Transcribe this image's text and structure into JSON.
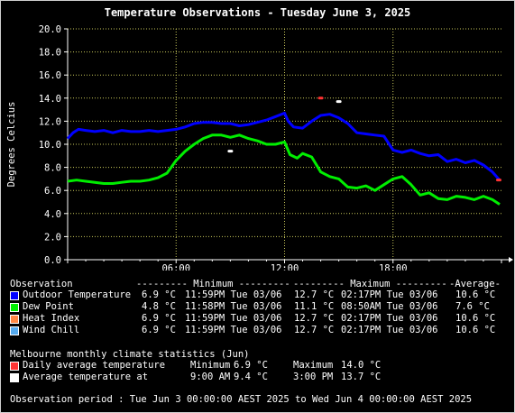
{
  "colors": {
    "outdoor": "#0000ff",
    "dewpoint": "#00ee00",
    "heat_index": "#ff8844",
    "wind_chill": "#55aaee",
    "climate_avg": "#ff3333",
    "climate_temp": "#ffffff",
    "grid": "#c8c85a",
    "axis": "#ffffff"
  },
  "chart_data": {
    "type": "line",
    "title": "Temperature Observations - Tuesday June 3, 2025",
    "ylabel": "Degrees Celcius",
    "xlabel": "",
    "ylim": [
      0,
      20
    ],
    "y_ticks": [
      "0.0",
      "2.0",
      "4.0",
      "6.0",
      "8.0",
      "10.0",
      "12.0",
      "14.0",
      "16.0",
      "18.0",
      "20.0"
    ],
    "x_range_hours": [
      0,
      24
    ],
    "x_ticks": [
      {
        "hour": 6,
        "label": "06:00"
      },
      {
        "hour": 12,
        "label": "12:00"
      },
      {
        "hour": 18,
        "label": "18:00"
      }
    ],
    "grid": true,
    "series": [
      {
        "name": "Outdoor Temperature",
        "color_key": "outdoor",
        "x": [
          0,
          0.3,
          0.6,
          1,
          1.5,
          2,
          2.5,
          3,
          3.5,
          4,
          4.5,
          5,
          5.5,
          6,
          6.5,
          7,
          7.5,
          8,
          8.5,
          9,
          9.5,
          10,
          10.5,
          11,
          11.5,
          12,
          12.2,
          12.5,
          13,
          13.5,
          14,
          14.5,
          15,
          15.5,
          16,
          16.5,
          17,
          17.5,
          18,
          18.5,
          19,
          19.5,
          20,
          20.5,
          21,
          21.5,
          22,
          22.5,
          23,
          23.5,
          23.9
        ],
        "values": [
          10.5,
          11.0,
          11.3,
          11.2,
          11.1,
          11.2,
          11.0,
          11.2,
          11.1,
          11.1,
          11.2,
          11.1,
          11.2,
          11.3,
          11.5,
          11.8,
          11.9,
          11.9,
          11.8,
          11.8,
          11.6,
          11.7,
          11.9,
          12.1,
          12.4,
          12.7,
          12.0,
          11.5,
          11.4,
          12.0,
          12.5,
          12.6,
          12.3,
          11.8,
          11.0,
          10.9,
          10.8,
          10.7,
          9.5,
          9.3,
          9.5,
          9.2,
          9.0,
          9.1,
          8.5,
          8.7,
          8.4,
          8.6,
          8.2,
          7.6,
          6.9
        ]
      },
      {
        "name": "Dew Point",
        "color_key": "dewpoint",
        "x": [
          0,
          0.5,
          1,
          1.5,
          2,
          2.5,
          3,
          3.5,
          4,
          4.5,
          5,
          5.5,
          6,
          6.5,
          7,
          7.5,
          8,
          8.5,
          9,
          9.5,
          10,
          10.5,
          11,
          11.5,
          12,
          12.3,
          12.7,
          13,
          13.5,
          14,
          14.5,
          15,
          15.5,
          16,
          16.5,
          17,
          17.5,
          18,
          18.5,
          19,
          19.5,
          20,
          20.5,
          21,
          21.5,
          22,
          22.5,
          23,
          23.5,
          23.9
        ],
        "values": [
          6.8,
          6.9,
          6.8,
          6.7,
          6.6,
          6.6,
          6.7,
          6.8,
          6.8,
          6.9,
          7.1,
          7.5,
          8.6,
          9.4,
          10.0,
          10.5,
          10.8,
          10.8,
          10.6,
          10.8,
          10.5,
          10.3,
          10.0,
          10.0,
          10.2,
          9.1,
          8.8,
          9.2,
          8.9,
          7.6,
          7.2,
          7.0,
          6.3,
          6.2,
          6.4,
          6.0,
          6.5,
          7.0,
          7.2,
          6.5,
          5.6,
          5.8,
          5.3,
          5.2,
          5.5,
          5.4,
          5.2,
          5.5,
          5.2,
          4.8
        ]
      }
    ],
    "climate_markers": [
      {
        "label": "Daily average temperature max",
        "hour": 14.0,
        "value": 14.0,
        "color_key": "climate_avg"
      },
      {
        "label": "Daily average temperature min",
        "hour": 23.85,
        "value": 6.9,
        "color_key": "climate_avg"
      },
      {
        "label": "Average temperature at 9:00 AM",
        "hour": 9.0,
        "value": 9.4,
        "color_key": "climate_temp"
      },
      {
        "label": "Average temperature at 3:00 PM",
        "hour": 15.0,
        "value": 13.7,
        "color_key": "climate_temp"
      }
    ]
  },
  "legend": {
    "header": {
      "observation": "Observation",
      "minimum": "--------- Minimum ---------",
      "maximum": "--------- Maximum ---------",
      "average": "-Average-"
    },
    "rows": [
      {
        "name": "Outdoor Temperature",
        "color_key": "outdoor",
        "min_val": "6.9 °C",
        "min_time": "11:59PM Tue 03/06",
        "max_val": "12.7 °C",
        "max_time": "02:17PM Tue 03/06",
        "avg": "10.6 °C"
      },
      {
        "name": "Dew Point",
        "color_key": "dewpoint",
        "min_val": "4.8 °C",
        "min_time": "11:58PM Tue 03/06",
        "max_val": "11.1 °C",
        "max_time": "08:50AM Tue 03/06",
        "avg": "7.6 °C"
      },
      {
        "name": "Heat Index",
        "color_key": "heat_index",
        "min_val": "6.9 °C",
        "min_time": "11:59PM Tue 03/06",
        "max_val": "12.7 °C",
        "max_time": "02:17PM Tue 03/06",
        "avg": "10.6 °C"
      },
      {
        "name": "Wind Chill",
        "color_key": "wind_chill",
        "min_val": "6.9 °C",
        "min_time": "11:59PM Tue 03/06",
        "max_val": "12.7 °C",
        "max_time": "02:17PM Tue 03/06",
        "avg": "10.6 °C"
      }
    ]
  },
  "climate": {
    "heading": "Melbourne monthly climate statistics (Jun)",
    "rows": [
      {
        "color_key": "climate_avg",
        "label": "Daily average temperature",
        "c1": "Minimum",
        "c2": "6.9 °C",
        "c3": "Maximum",
        "c4": "14.0 °C"
      },
      {
        "color_key": "climate_temp",
        "label": "Average temperature at",
        "c1": "9:00 AM",
        "c2": "9.4 °C",
        "c3": "3:00 PM",
        "c4": "13.7 °C"
      }
    ]
  },
  "footer": {
    "period": "Observation period : Tue Jun 3 00:00:00 AEST 2025 to Wed Jun 4 00:00:00 AEST 2025"
  }
}
